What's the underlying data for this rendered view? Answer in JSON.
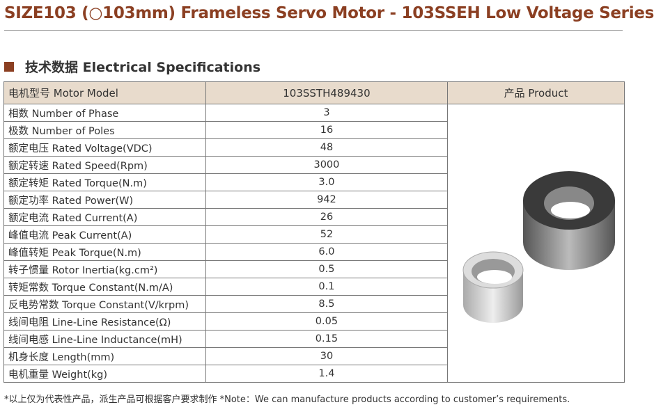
{
  "title": "SIZE103 (○103mm) Frameless Servo Motor - 103SSEH Low Voltage Series",
  "section": "技术数据 Electrical Specifications",
  "header": {
    "label": "电机型号 Motor Model",
    "model": "103SSTH489430",
    "product": "产品 Product"
  },
  "rows": [
    {
      "label": "相数 Number of Phase",
      "value": "3"
    },
    {
      "label": "极数 Number of Poles",
      "value": "16"
    },
    {
      "label": "额定电压 Rated Voltage(VDC)",
      "value": "48"
    },
    {
      "label": "额定转速 Rated Speed(Rpm)",
      "value": "3000"
    },
    {
      "label": "额定转矩 Rated Torque(N.m)",
      "value": "3.0"
    },
    {
      "label": "额定功率 Rated Power(W)",
      "value": "942"
    },
    {
      "label": "额定电流 Rated Current(A)",
      "value": "26"
    },
    {
      "label": "峰值电流 Peak Current(A)",
      "value": "52"
    },
    {
      "label": "峰值转矩 Peak Torque(N.m)",
      "value": "6.0"
    },
    {
      "label": "转子惯量 Rotor Inertia(kg.cm²)",
      "value": "0.5"
    },
    {
      "label": "转矩常数 Torque Constant(N.m/A)",
      "value": "0.1"
    },
    {
      "label": "反电势常数 Torque Constant(V/krpm)",
      "value": "8.5"
    },
    {
      "label": "线间电阻 Line-Line Resistance(Ω)",
      "value": "0.05"
    },
    {
      "label": "线间电感 Line-Line Inductance(mH)",
      "value": "0.15"
    },
    {
      "label": "机身长度 Length(mm)",
      "value": "30"
    },
    {
      "label": "电机重量 Weight(kg)",
      "value": "1.4"
    }
  ],
  "footer": "*以上仅为代表性产品，派生产品可根据客户要求制作   *Note：We can manufacture products according to customer’s requirements.",
  "colors": {
    "accent": "#8b3f22",
    "header_bg": "#e8dbcc"
  }
}
